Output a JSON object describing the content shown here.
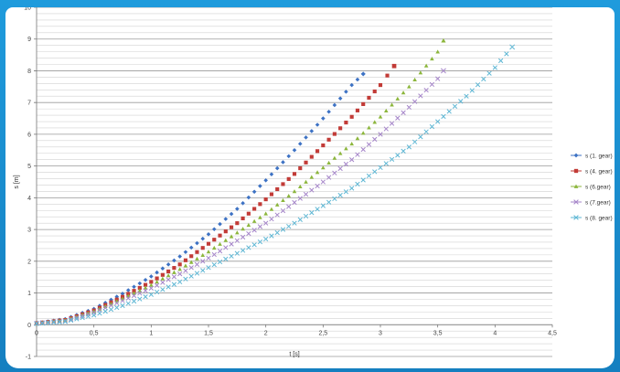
{
  "chart_data": {
    "type": "scatter",
    "xlabel": "t [s]",
    "ylabel": "s [m]",
    "xlim": [
      0,
      4.5
    ],
    "ylim": [
      -1,
      10
    ],
    "x_ticks": [
      "0",
      "0,5",
      "1",
      "1,5",
      "2",
      "2,5",
      "3",
      "3,5",
      "4",
      "4,5"
    ],
    "y_ticks": [
      "-1",
      "0",
      "1",
      "2",
      "3",
      "4",
      "5",
      "6",
      "7",
      "8",
      "9",
      "10"
    ],
    "grid": true,
    "legend_position": "right",
    "series": [
      {
        "name": "s (1. gear)",
        "color": "#3d72c4",
        "marker": "diamond",
        "x": [
          0,
          0.25,
          0.5,
          0.75,
          1.0,
          1.25,
          1.5,
          1.75,
          2.0,
          2.25,
          2.5,
          2.75,
          2.85
        ],
        "y": [
          0.05,
          0.18,
          0.5,
          0.98,
          1.52,
          2.15,
          2.85,
          3.65,
          4.55,
          5.5,
          6.5,
          7.55,
          7.9
        ]
      },
      {
        "name": "s (4. gear)",
        "color": "#c23b37",
        "marker": "square",
        "x": [
          0,
          0.25,
          0.5,
          0.75,
          1.0,
          1.25,
          1.5,
          1.75,
          2.0,
          2.25,
          2.5,
          2.75,
          3.0,
          3.12
        ],
        "y": [
          0.05,
          0.15,
          0.45,
          0.88,
          1.35,
          1.9,
          2.55,
          3.2,
          3.95,
          4.75,
          5.65,
          6.55,
          7.55,
          8.15
        ]
      },
      {
        "name": "s (6.gear)",
        "color": "#8cb63c",
        "marker": "triangle",
        "x": [
          0,
          0.25,
          0.5,
          0.75,
          1.0,
          1.25,
          1.5,
          1.75,
          2.0,
          2.25,
          2.5,
          2.75,
          3.0,
          3.25,
          3.5,
          3.55
        ],
        "y": [
          0.05,
          0.14,
          0.42,
          0.82,
          1.25,
          1.75,
          2.3,
          2.9,
          3.5,
          4.2,
          4.95,
          5.7,
          6.55,
          7.5,
          8.6,
          8.95
        ]
      },
      {
        "name": "s (7.gear)",
        "color": "#a585c9",
        "marker": "x",
        "x": [
          0,
          0.25,
          0.5,
          0.75,
          1.0,
          1.25,
          1.5,
          1.75,
          2.0,
          2.25,
          2.5,
          2.75,
          3.0,
          3.25,
          3.5,
          3.55
        ],
        "y": [
          0.05,
          0.12,
          0.38,
          0.76,
          1.15,
          1.6,
          2.1,
          2.65,
          3.2,
          3.85,
          4.5,
          5.2,
          6.0,
          6.85,
          7.75,
          8.0
        ]
      },
      {
        "name": "s (8. gear)",
        "color": "#5fb7d4",
        "marker": "x",
        "x": [
          0,
          0.25,
          0.5,
          0.75,
          1.0,
          1.25,
          1.5,
          1.75,
          2.0,
          2.25,
          2.5,
          2.75,
          3.0,
          3.25,
          3.5,
          3.75,
          4.0,
          4.15
        ],
        "y": [
          0.03,
          0.1,
          0.3,
          0.6,
          0.95,
          1.35,
          1.8,
          2.25,
          2.7,
          3.2,
          3.75,
          4.3,
          4.95,
          5.6,
          6.4,
          7.2,
          8.1,
          8.75
        ]
      }
    ]
  }
}
